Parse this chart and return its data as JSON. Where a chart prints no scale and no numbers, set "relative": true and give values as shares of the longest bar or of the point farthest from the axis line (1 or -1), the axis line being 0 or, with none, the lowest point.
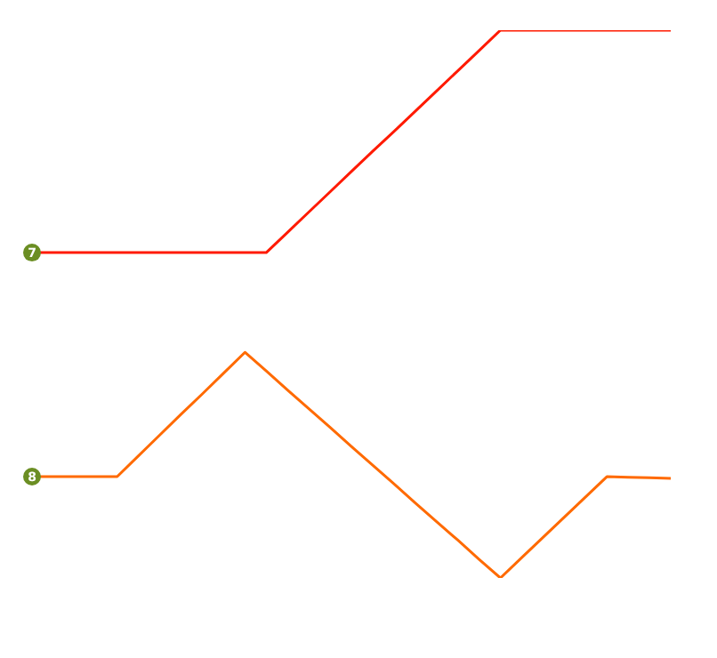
{
  "chart_data": {
    "type": "line",
    "relative": true,
    "categories": [
      null,
      null,
      null,
      null,
      null,
      null,
      null,
      null,
      null,
      null,
      null,
      null,
      null,
      null,
      null,
      null,
      null,
      null,
      null,
      null,
      null,
      null,
      null,
      null,
      null,
      null,
      null,
      null,
      null,
      null,
      null
    ],
    "series": [
      {
        "name": "7",
        "color": "#ff1a00",
        "values": [
          0.594,
          0.594,
          0.594,
          0.594,
          0.594,
          0.594,
          0.594,
          0.594,
          0.594,
          0.594,
          0.594,
          0.594,
          0.631,
          0.668,
          0.705,
          0.742,
          0.779,
          0.815,
          0.852,
          0.889,
          0.926,
          0.963,
          1,
          1,
          1,
          1,
          1,
          1,
          1,
          1,
          1
        ]
      },
      {
        "name": "8",
        "color": "#ff6a00",
        "values": [
          0.185,
          0.185,
          0.185,
          0.185,
          0.185,
          0.223,
          0.261,
          0.299,
          0.336,
          0.374,
          0.412,
          0.378,
          0.343,
          0.309,
          0.275,
          0.24,
          0.206,
          0.172,
          0.137,
          0.103,
          0.069,
          0.034,
          0,
          0.037,
          0.074,
          0.111,
          0.148,
          0.185,
          0.184,
          0.183,
          0.182
        ]
      }
    ]
  }
}
